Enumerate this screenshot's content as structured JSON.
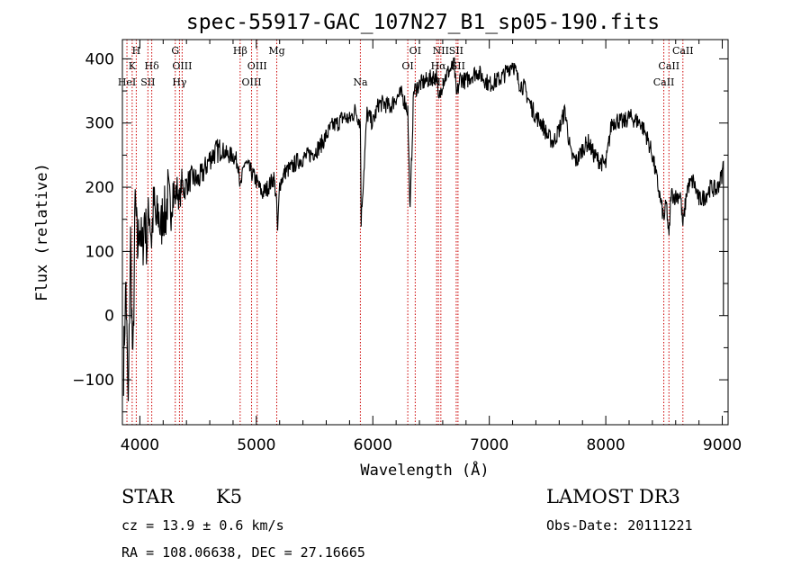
{
  "chart_data": {
    "type": "line",
    "title": "spec-55917-GAC_107N27_B1_sp05-190.fits",
    "xlabel": "Wavelength (Å)",
    "ylabel": "Flux (relative)",
    "xlim": [
      3850,
      9050
    ],
    "ylim": [
      -170,
      430
    ],
    "x_ticks": [
      4000,
      5000,
      6000,
      7000,
      8000,
      9000
    ],
    "y_ticks": [
      -100,
      0,
      100,
      200,
      300,
      400
    ],
    "x_tick_labels": [
      "4000",
      "5000",
      "6000",
      "7000",
      "8000",
      "9000"
    ],
    "y_tick_labels": [
      "−100",
      "0",
      "100",
      "200",
      "300",
      "400"
    ],
    "series": [
      {
        "name": "flux",
        "x": [
          3860,
          3880,
          3900,
          3920,
          3940,
          3960,
          3980,
          4000,
          4020,
          4040,
          4060,
          4080,
          4100,
          4120,
          4140,
          4160,
          4180,
          4200,
          4220,
          4240,
          4260,
          4280,
          4300,
          4320,
          4340,
          4360,
          4380,
          4400,
          4450,
          4500,
          4550,
          4600,
          4650,
          4700,
          4750,
          4800,
          4850,
          4861,
          4900,
          4950,
          5000,
          5050,
          5100,
          5150,
          5170,
          5183,
          5200,
          5250,
          5300,
          5350,
          5400,
          5450,
          5500,
          5550,
          5600,
          5650,
          5700,
          5750,
          5800,
          5850,
          5893,
          5900,
          5950,
          6000,
          6050,
          6100,
          6150,
          6200,
          6250,
          6300,
          6320,
          6350,
          6400,
          6450,
          6500,
          6550,
          6563,
          6600,
          6650,
          6700,
          6717,
          6750,
          6800,
          6850,
          6900,
          6950,
          7000,
          7050,
          7100,
          7150,
          7200,
          7250,
          7300,
          7350,
          7400,
          7450,
          7500,
          7550,
          7600,
          7650,
          7700,
          7750,
          7800,
          7850,
          7900,
          7950,
          8000,
          8050,
          8100,
          8150,
          8200,
          8250,
          8300,
          8350,
          8400,
          8450,
          8498,
          8520,
          8542,
          8560,
          8600,
          8640,
          8662,
          8700,
          8750,
          8800,
          8850,
          8900,
          8950,
          9000,
          9010
        ],
        "y": [
          -80,
          50,
          -150,
          120,
          -90,
          180,
          100,
          150,
          90,
          160,
          110,
          170,
          120,
          175,
          140,
          160,
          130,
          170,
          150,
          190,
          160,
          200,
          180,
          200,
          175,
          210,
          195,
          205,
          215,
          210,
          225,
          245,
          255,
          260,
          250,
          250,
          235,
          195,
          240,
          225,
          210,
          190,
          200,
          215,
          185,
          130,
          205,
          225,
          230,
          240,
          245,
          250,
          255,
          265,
          280,
          295,
          300,
          310,
          305,
          320,
          300,
          150,
          315,
          300,
          330,
          330,
          325,
          340,
          345,
          320,
          160,
          350,
          360,
          365,
          370,
          375,
          330,
          365,
          380,
          390,
          340,
          370,
          365,
          375,
          380,
          370,
          360,
          365,
          370,
          380,
          395,
          365,
          355,
          330,
          310,
          300,
          280,
          270,
          290,
          320,
          250,
          240,
          260,
          270,
          250,
          240,
          235,
          300,
          305,
          300,
          310,
          305,
          300,
          280,
          250,
          200,
          150,
          175,
          120,
          190,
          185,
          190,
          140,
          200,
          210,
          180,
          185,
          200,
          195,
          220,
          240
        ]
      }
    ],
    "spectral_lines": [
      {
        "label": "H",
        "x": 3969,
        "row": 0
      },
      {
        "label": "K",
        "x": 3934,
        "row": 1
      },
      {
        "label": "HeI",
        "x": 3889,
        "row": 2
      },
      {
        "label": "SII",
        "x": 4069,
        "row": 2
      },
      {
        "label": "Hδ",
        "x": 4102,
        "row": 1
      },
      {
        "label": "G",
        "x": 4304,
        "row": 0
      },
      {
        "label": "OIII",
        "x": 4363,
        "row": 1
      },
      {
        "label": "Hγ",
        "x": 4340,
        "row": 2
      },
      {
        "label": "Hβ",
        "x": 4861,
        "row": 0
      },
      {
        "label": "OIII",
        "x": 5007,
        "row": 1
      },
      {
        "label": "OIII",
        "x": 4959,
        "row": 2
      },
      {
        "label": "Mg",
        "x": 5175,
        "row": 0
      },
      {
        "label": "Na",
        "x": 5893,
        "row": 2
      },
      {
        "label": "OI",
        "x": 6364,
        "row": 0
      },
      {
        "label": "OI",
        "x": 6300,
        "row": 1
      },
      {
        "label": "NII",
        "x": 6584,
        "row": 0
      },
      {
        "label": "SII",
        "x": 6716,
        "row": 0
      },
      {
        "label": "Hα",
        "x": 6563,
        "row": 1
      },
      {
        "label": "SII",
        "x": 6731,
        "row": 1
      },
      {
        "label": "NII",
        "x": 6548,
        "row": 2
      },
      {
        "label": "CaII",
        "x": 8662,
        "row": 0
      },
      {
        "label": "CaII",
        "x": 8542,
        "row": 1
      },
      {
        "label": "CaII",
        "x": 8498,
        "row": 2
      }
    ]
  },
  "info": {
    "class": "STAR",
    "subclass": "K5",
    "survey": "LAMOST DR3",
    "cz": "cz = 13.9 ± 0.6 km/s",
    "obs_date": "Obs-Date: 20111221",
    "radec": "RA = 108.06638, DEC =  27.16665"
  },
  "colors": {
    "line": "#000000",
    "marker": "#cc0000",
    "background": "#ffffff"
  }
}
